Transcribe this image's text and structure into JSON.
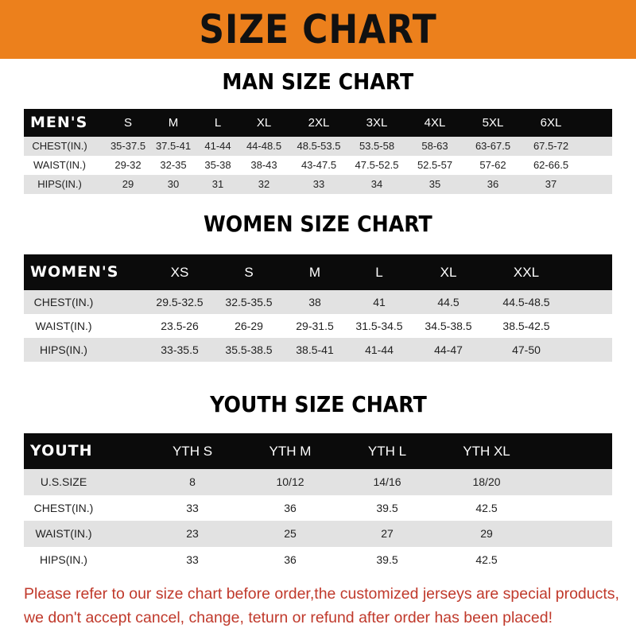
{
  "banner_title": "SIZE CHART",
  "tables": [
    {
      "title": "MAN SIZE CHART",
      "header": [
        "MEN'S",
        "S",
        "M",
        "L",
        "XL",
        "2XL",
        "3XL",
        "4XL",
        "5XL",
        "6XL"
      ],
      "rows": [
        [
          "CHEST(IN.)",
          "35-37.5",
          "37.5-41",
          "41-44",
          "44-48.5",
          "48.5-53.5",
          "53.5-58",
          "58-63",
          "63-67.5",
          "67.5-72"
        ],
        [
          "WAIST(IN.)",
          "29-32",
          "32-35",
          "35-38",
          "38-43",
          "43-47.5",
          "47.5-52.5",
          "52.5-57",
          "57-62",
          "62-66.5"
        ],
        [
          "HIPS(IN.)",
          "29",
          "30",
          "31",
          "32",
          "33",
          "34",
          "35",
          "36",
          "37"
        ]
      ]
    },
    {
      "title": "WOMEN SIZE CHART",
      "header": [
        "WOMEN'S",
        "XS",
        "S",
        "M",
        "L",
        "XL",
        "XXL"
      ],
      "rows": [
        [
          "CHEST(IN.)",
          "29.5-32.5",
          "32.5-35.5",
          "38",
          "41",
          "44.5",
          "44.5-48.5"
        ],
        [
          "WAIST(IN.)",
          "23.5-26",
          "26-29",
          "29-31.5",
          "31.5-34.5",
          "34.5-38.5",
          "38.5-42.5"
        ],
        [
          "HIPS(IN.)",
          "33-35.5",
          "35.5-38.5",
          "38.5-41",
          "41-44",
          "44-47",
          "47-50"
        ]
      ]
    },
    {
      "title": "YOUTH SIZE CHART",
      "header": [
        "YOUTH",
        "YTH S",
        "YTH M",
        "YTH L",
        "YTH XL"
      ],
      "rows": [
        [
          "U.S.SIZE",
          "8",
          "10/12",
          "14/16",
          "18/20"
        ],
        [
          "CHEST(IN.)",
          "33",
          "36",
          "39.5",
          "42.5"
        ],
        [
          "WAIST(IN.)",
          "23",
          "25",
          "27",
          "29"
        ],
        [
          "HIPS(IN.)",
          "33",
          "36",
          "39.5",
          "42.5"
        ]
      ]
    }
  ],
  "notice": [
    "Please refer to our size chart before order,the customized jerseys are special products,",
    "we don't accept cancel, change, teturn or refund after order has been placed!"
  ],
  "colors": {
    "banner": "#ec801c",
    "header_row": "#0b0b0b",
    "stripe": "#e2e2e2",
    "notice": "#c0392b"
  }
}
